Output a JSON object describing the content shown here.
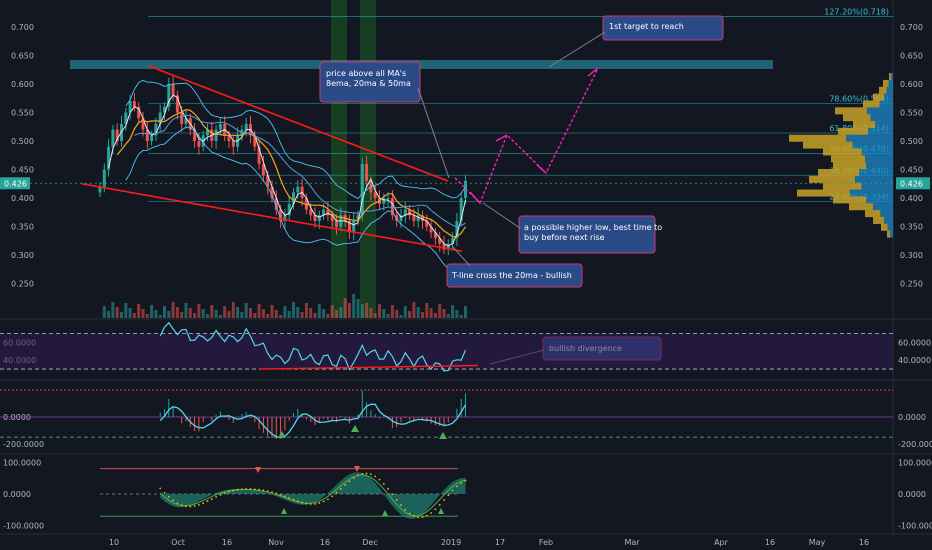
{
  "chart_data": {
    "type": "candlestick",
    "price": {
      "ylim": [
        0.19,
        0.74
      ],
      "y_ticks": [
        "0.700",
        "0.650",
        "0.600",
        "0.550",
        "0.500",
        "0.450",
        "0.400",
        "0.350",
        "0.300",
        "0.250"
      ],
      "last_price": "0.426",
      "fib_levels": [
        {
          "label": "127.20%(0.718)",
          "value": 0.718
        },
        {
          "label": "78.60%(0.566)",
          "value": 0.566
        },
        {
          "label": "61.80%(0.514)",
          "value": 0.514
        },
        {
          "label": "50.00%(0.478)",
          "value": 0.478
        },
        {
          "label": "38.20%(0.440)",
          "value": 0.44
        },
        {
          "label": "23.60%(0.394)",
          "value": 0.394
        }
      ],
      "closes": [
        0.42,
        0.45,
        0.49,
        0.52,
        0.5,
        0.53,
        0.55,
        0.57,
        0.56,
        0.54,
        0.52,
        0.5,
        0.51,
        0.53,
        0.55,
        0.56,
        0.6,
        0.58,
        0.55,
        0.53,
        0.54,
        0.52,
        0.5,
        0.49,
        0.51,
        0.52,
        0.5,
        0.52,
        0.53,
        0.51,
        0.5,
        0.49,
        0.51,
        0.52,
        0.53,
        0.51,
        0.49,
        0.46,
        0.44,
        0.42,
        0.4,
        0.38,
        0.36,
        0.37,
        0.39,
        0.41,
        0.42,
        0.4,
        0.38,
        0.37,
        0.36,
        0.37,
        0.38,
        0.37,
        0.36,
        0.35,
        0.37,
        0.36,
        0.34,
        0.36,
        0.37,
        0.46,
        0.43,
        0.41,
        0.4,
        0.39,
        0.4,
        0.4,
        0.37,
        0.36,
        0.37,
        0.38,
        0.37,
        0.36,
        0.37,
        0.36,
        0.35,
        0.34,
        0.33,
        0.32,
        0.31,
        0.32,
        0.33,
        0.36,
        0.4,
        0.43
      ]
    },
    "rsi": {
      "ylim": [
        20,
        85
      ],
      "y_ticks": [
        "60.0000",
        "40.0000"
      ],
      "bands": [
        70,
        30
      ]
    },
    "momentum": {
      "ylim": [
        -260,
        260
      ],
      "y_ticks": [
        "0.0000",
        "-200.0000"
      ],
      "levels": [
        -150,
        200
      ]
    },
    "oscillator": {
      "ylim": [
        -120,
        120
      ],
      "y_ticks": [
        "100.0000",
        "0.0000",
        "-100.0000"
      ],
      "levels": [
        80,
        -70
      ]
    },
    "x_ticks": [
      "10",
      "Oct",
      "16",
      "Nov",
      "16",
      "Dec",
      "2019",
      "17",
      "Feb",
      "Mar",
      "Apr",
      "16",
      "May",
      "16"
    ],
    "annotations": [
      {
        "id": "target",
        "text": [
          "1st target to reach"
        ]
      },
      {
        "id": "ma",
        "text": [
          "price above all MA's",
          "8ema, 20ma & 50ma"
        ]
      },
      {
        "id": "higherlow",
        "text": [
          "a possible higher low, best time to",
          "buy before next rise"
        ]
      },
      {
        "id": "tline",
        "text": [
          "T-line cross the 20ma - bullish"
        ]
      },
      {
        "id": "divergence",
        "text": [
          "bullish divergence"
        ]
      }
    ]
  }
}
